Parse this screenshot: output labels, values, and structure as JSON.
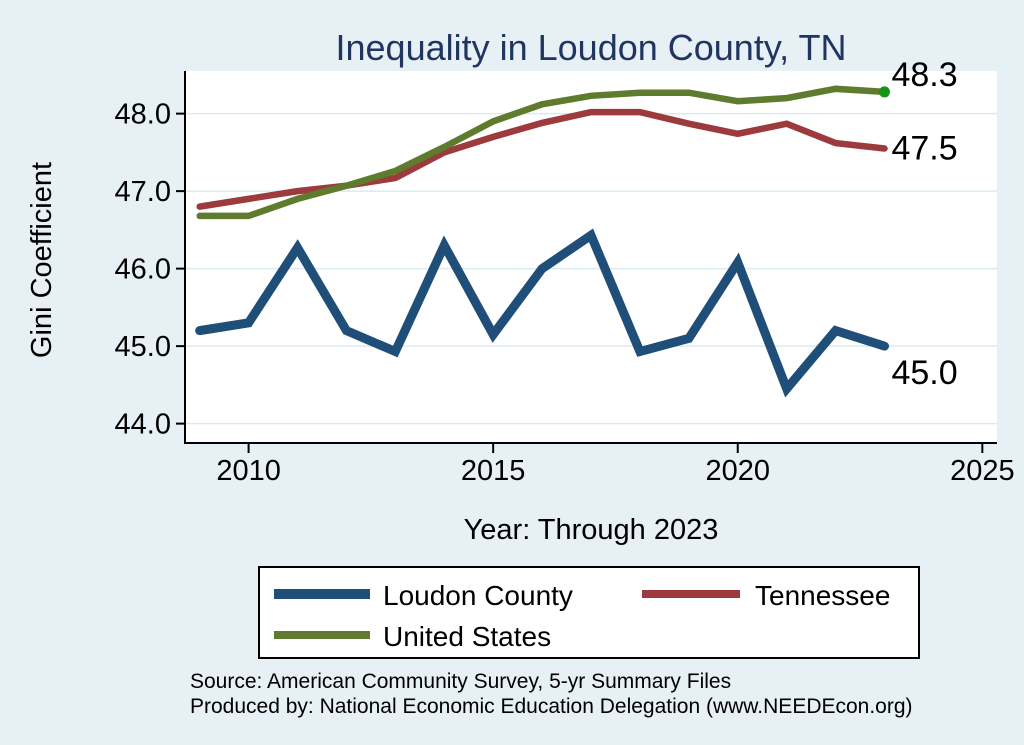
{
  "title": "Inequality in Loudon County, TN",
  "ylabel": "Gini Coefficient",
  "xlabel": "Year: Through 2023",
  "source_line1": "Source: American Community Survey, 5-yr Summary Files",
  "source_line2": "Produced by: National Economic Education Delegation (www.NEEDEcon.org)",
  "colors": {
    "background": "#e7f0f4",
    "plot_background": "#ffffff",
    "gridline": "#dceaf0",
    "axis": "#000000",
    "title": "#20355f",
    "loudon_county": "#1f4e79",
    "tennessee": "#9c3a3e",
    "united_states": "#5f7b2d",
    "end_marker": "#169416"
  },
  "legend": {
    "items": [
      {
        "label": "Loudon County"
      },
      {
        "label": "Tennessee"
      },
      {
        "label": "United States"
      }
    ]
  },
  "chart_data": {
    "type": "line",
    "title": "Inequality in Loudon County, TN",
    "xlabel": "Year: Through 2023",
    "ylabel": "Gini Coefficient",
    "grid": true,
    "legend_position": "bottom",
    "xlim": [
      2008.7,
      2025.3
    ],
    "ylim": [
      43.75,
      48.55
    ],
    "x_ticks": [
      2010,
      2015,
      2020,
      2025
    ],
    "x_tick_labels": [
      "2010",
      "2015",
      "2020",
      "2025"
    ],
    "y_ticks": [
      44.0,
      45.0,
      46.0,
      47.0,
      48.0
    ],
    "y_tick_labels": [
      "44.0",
      "45.0",
      "46.0",
      "47.0",
      "48.0"
    ],
    "x": [
      2009,
      2010,
      2011,
      2012,
      2013,
      2014,
      2015,
      2016,
      2017,
      2018,
      2019,
      2020,
      2021,
      2022,
      2023
    ],
    "series": [
      {
        "name": "Loudon County",
        "color": "#1f4e79",
        "line_width": 9,
        "end_label": "45.0",
        "values": [
          45.2,
          45.3,
          46.27,
          45.2,
          44.93,
          46.3,
          45.15,
          46.0,
          46.43,
          44.93,
          45.1,
          46.08,
          44.45,
          45.2,
          45.0
        ]
      },
      {
        "name": "Tennessee",
        "color": "#9c3a3e",
        "line_width": 6.5,
        "end_label": "47.5",
        "values": [
          46.8,
          46.9,
          47.0,
          47.07,
          47.17,
          47.5,
          47.7,
          47.88,
          48.02,
          48.02,
          47.87,
          47.74,
          47.87,
          47.62,
          47.55
        ]
      },
      {
        "name": "United States",
        "color": "#5f7b2d",
        "line_width": 6.5,
        "end_label": "48.3",
        "end_marker": true,
        "end_marker_color": "#169416",
        "values": [
          46.68,
          46.68,
          46.9,
          47.07,
          47.26,
          47.57,
          47.9,
          48.12,
          48.23,
          48.27,
          48.27,
          48.16,
          48.2,
          48.32,
          48.28
        ]
      }
    ]
  }
}
